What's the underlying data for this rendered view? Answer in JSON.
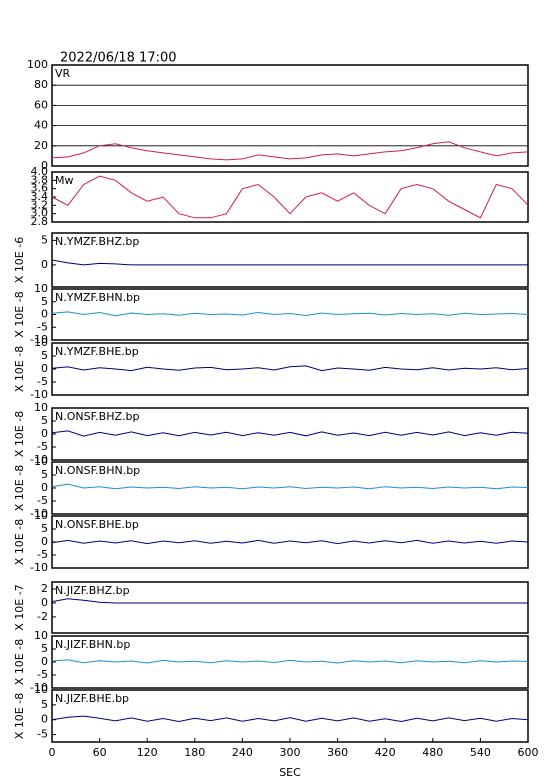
{
  "chart_data": [
    {
      "type": "line",
      "title": "2022/06/18 17:00",
      "label": "VR",
      "grid": true,
      "xlim": [
        0,
        600
      ],
      "ylim": [
        0,
        100
      ],
      "yticks": [
        0,
        20,
        40,
        60,
        80,
        100
      ],
      "x": [
        0,
        20,
        40,
        60,
        80,
        100,
        120,
        140,
        160,
        180,
        200,
        220,
        240,
        260,
        280,
        300,
        320,
        340,
        360,
        380,
        400,
        420,
        440,
        460,
        480,
        500,
        520,
        540,
        560,
        580,
        600
      ],
      "series": [
        {
          "color": "#d0204a",
          "values": [
            8,
            9,
            13,
            20,
            22,
            18,
            15,
            13,
            11,
            9,
            7,
            6,
            7,
            11,
            9,
            7,
            8,
            11,
            12,
            10,
            12,
            14,
            15,
            18,
            22,
            24,
            18,
            14,
            10,
            13,
            14
          ]
        }
      ]
    },
    {
      "type": "line",
      "label": "Mw",
      "xlim": [
        0,
        600
      ],
      "ylim": [
        2.8,
        4.0
      ],
      "yticks": [
        {
          "value": 2.8,
          "label": "2.8"
        },
        {
          "value": 3.0,
          "label": "3.0"
        },
        3.2,
        3.4,
        3.6,
        3.8,
        {
          "value": 4.0,
          "label": "4.0"
        }
      ],
      "x": [
        0,
        20,
        40,
        60,
        80,
        100,
        120,
        140,
        160,
        180,
        200,
        220,
        240,
        260,
        280,
        300,
        320,
        340,
        360,
        380,
        400,
        420,
        440,
        460,
        480,
        500,
        520,
        540,
        560,
        580,
        600
      ],
      "series": [
        {
          "color": "#d0204a",
          "values": [
            3.4,
            3.2,
            3.7,
            3.9,
            3.8,
            3.5,
            3.3,
            3.4,
            3.0,
            2.9,
            2.9,
            3.0,
            3.6,
            3.7,
            3.4,
            3.0,
            3.4,
            3.5,
            3.3,
            3.5,
            3.2,
            3.0,
            3.6,
            3.7,
            3.6,
            3.3,
            3.1,
            2.9,
            3.7,
            3.6,
            3.2
          ]
        }
      ]
    },
    {
      "type": "line",
      "label": "N.YMZF.BHZ.bp",
      "ylabel": "X 10E -6",
      "xlim": [
        0,
        600
      ],
      "ylim": [
        -4.5,
        6.5
      ],
      "yticks": [
        0,
        5
      ],
      "x": [
        0,
        20,
        40,
        60,
        80,
        100,
        120,
        140,
        160,
        180,
        200,
        220,
        240,
        260,
        280,
        300,
        320,
        340,
        360,
        380,
        400,
        420,
        440,
        460,
        480,
        500,
        520,
        540,
        560,
        580,
        600
      ],
      "series": [
        {
          "color": "#000080",
          "values": [
            1,
            0.4,
            0,
            0.3,
            0.2,
            0,
            0,
            0,
            0,
            0,
            0,
            0,
            0,
            0,
            0,
            0,
            0,
            0,
            0,
            0,
            0,
            0,
            0,
            0,
            0,
            0,
            0,
            0,
            0,
            0,
            0
          ]
        }
      ]
    },
    {
      "type": "line",
      "label": "N.YMZF.BHN.bp",
      "ylabel": "X 10E -8",
      "xlim": [
        0,
        600
      ],
      "ylim": [
        -10,
        10
      ],
      "yticks": [
        -10,
        -5,
        0,
        5,
        10
      ],
      "x": [
        0,
        20,
        40,
        60,
        80,
        100,
        120,
        140,
        160,
        180,
        200,
        220,
        240,
        260,
        280,
        300,
        320,
        340,
        360,
        380,
        400,
        420,
        440,
        460,
        480,
        500,
        520,
        540,
        560,
        580,
        600
      ],
      "series": [
        {
          "color": "#1e90d0",
          "values": [
            0.5,
            1,
            0,
            0.8,
            -0.5,
            0.6,
            0,
            0.3,
            -0.3,
            0.5,
            0,
            0.2,
            -0.2,
            0.8,
            0,
            0.4,
            -0.4,
            0.6,
            0,
            0.3,
            0.5,
            -0.2,
            0.4,
            0,
            0.3,
            -0.3,
            0.5,
            0,
            0.2,
            0.4,
            0
          ]
        }
      ]
    },
    {
      "type": "line",
      "label": "N.YMZF.BHE.bp",
      "ylabel": "X 10E -8",
      "xlim": [
        0,
        600
      ],
      "ylim": [
        -10,
        10
      ],
      "yticks": [
        -10,
        -5,
        0,
        5,
        10
      ],
      "x": [
        0,
        20,
        40,
        60,
        80,
        100,
        120,
        140,
        160,
        180,
        200,
        220,
        240,
        260,
        280,
        300,
        320,
        340,
        360,
        380,
        400,
        420,
        440,
        460,
        480,
        500,
        520,
        540,
        560,
        580,
        600
      ],
      "series": [
        {
          "color": "#000080",
          "values": [
            0.3,
            0.8,
            -0.4,
            0.5,
            0,
            -0.6,
            0.7,
            0,
            -0.5,
            0.4,
            0.6,
            -0.3,
            0,
            0.5,
            -0.4,
            0.9,
            1.2,
            -0.6,
            0.4,
            0,
            -0.5,
            0.6,
            0,
            -0.3,
            0.5,
            -0.4,
            0.3,
            0,
            0.5,
            -0.3,
            0.2
          ]
        }
      ]
    },
    {
      "type": "line",
      "label": "N.ONSF.BHZ.bp",
      "ylabel": "X 10E -8",
      "xlim": [
        0,
        600
      ],
      "ylim": [
        -10,
        10
      ],
      "yticks": [
        -10,
        -5,
        0,
        5,
        10
      ],
      "x": [
        0,
        20,
        40,
        60,
        80,
        100,
        120,
        140,
        160,
        180,
        200,
        220,
        240,
        260,
        280,
        300,
        320,
        340,
        360,
        380,
        400,
        420,
        440,
        460,
        480,
        500,
        520,
        540,
        560,
        580,
        600
      ],
      "series": [
        {
          "color": "#000080",
          "values": [
            0.5,
            1.2,
            -0.8,
            0.6,
            -0.5,
            0.8,
            -0.6,
            0.5,
            -0.7,
            0.6,
            -0.4,
            0.7,
            -0.6,
            0.5,
            -0.5,
            0.6,
            -0.7,
            0.8,
            -0.5,
            0.4,
            -0.6,
            0.7,
            -0.5,
            0.6,
            -0.4,
            0.8,
            -0.6,
            0.5,
            -0.5,
            0.7,
            0.3
          ]
        }
      ]
    },
    {
      "type": "line",
      "label": "N.ONSF.BHN.bp",
      "ylabel": "X 10E -8",
      "xlim": [
        0,
        600
      ],
      "ylim": [
        -10,
        10
      ],
      "yticks": [
        -10,
        -5,
        0,
        5,
        10
      ],
      "x": [
        0,
        20,
        40,
        60,
        80,
        100,
        120,
        140,
        160,
        180,
        200,
        220,
        240,
        260,
        280,
        300,
        320,
        340,
        360,
        380,
        400,
        420,
        440,
        460,
        480,
        500,
        520,
        540,
        560,
        580,
        600
      ],
      "series": [
        {
          "color": "#1e90d0",
          "values": [
            0.5,
            1.5,
            0,
            0.5,
            -0.3,
            0.4,
            0,
            0.3,
            -0.2,
            0.5,
            0,
            0.3,
            -0.3,
            0.4,
            0,
            0.5,
            -0.2,
            0.3,
            0,
            0.4,
            -0.3,
            0.5,
            0,
            0.3,
            -0.2,
            0.4,
            0,
            0.3,
            -0.3,
            0.4,
            0.2
          ]
        }
      ]
    },
    {
      "type": "line",
      "label": "N.ONSF.BHE.bp",
      "ylabel": "X 10E -8",
      "xlim": [
        0,
        600
      ],
      "ylim": [
        -10,
        10
      ],
      "yticks": [
        -10,
        -5,
        0,
        5,
        10
      ],
      "x": [
        0,
        20,
        40,
        60,
        80,
        100,
        120,
        140,
        160,
        180,
        200,
        220,
        240,
        260,
        280,
        300,
        320,
        340,
        360,
        380,
        400,
        420,
        440,
        460,
        480,
        500,
        520,
        540,
        560,
        580,
        600
      ],
      "series": [
        {
          "color": "#000080",
          "values": [
            -0.3,
            0.6,
            -0.5,
            0.4,
            -0.4,
            0.5,
            -0.6,
            0.4,
            -0.3,
            0.5,
            -0.5,
            0.3,
            -0.4,
            0.6,
            -0.5,
            0.4,
            -0.3,
            0.5,
            -0.6,
            0.4,
            -0.4,
            0.5,
            -0.3,
            0.6,
            -0.5,
            0.4,
            -0.4,
            0.3,
            -0.5,
            0.4,
            0
          ]
        }
      ]
    },
    {
      "type": "line",
      "label": "N.JIZF.BHZ.bp",
      "ylabel": "X 10E -7",
      "xlim": [
        0,
        600
      ],
      "ylim": [
        -4.3,
        3
      ],
      "yticks": [
        -2,
        0,
        2
      ],
      "x": [
        0,
        20,
        40,
        60,
        80,
        100,
        120,
        140,
        160,
        180,
        200,
        220,
        240,
        260,
        280,
        300,
        320,
        340,
        360,
        380,
        400,
        420,
        440,
        460,
        480,
        500,
        520,
        540,
        560,
        580,
        600
      ],
      "series": [
        {
          "color": "#000080",
          "values": [
            0.2,
            0.6,
            0.4,
            0.1,
            0,
            0,
            0,
            0,
            0,
            0,
            0,
            0,
            0,
            0,
            0,
            0,
            0,
            0,
            0,
            0,
            0,
            0,
            0,
            0,
            0,
            0,
            0,
            0,
            0,
            0,
            0
          ]
        }
      ]
    },
    {
      "type": "line",
      "label": "N.JIZF.BHN.bp",
      "ylabel": "X 10E -8",
      "xlim": [
        0,
        600
      ],
      "ylim": [
        -10,
        10
      ],
      "yticks": [
        -10,
        -5,
        0,
        5,
        10
      ],
      "x": [
        0,
        20,
        40,
        60,
        80,
        100,
        120,
        140,
        160,
        180,
        200,
        220,
        240,
        260,
        280,
        300,
        320,
        340,
        360,
        380,
        400,
        420,
        440,
        460,
        480,
        500,
        520,
        540,
        560,
        580,
        600
      ],
      "series": [
        {
          "color": "#1e90d0",
          "values": [
            0.4,
            0.8,
            -0.3,
            0.5,
            0,
            0.4,
            -0.4,
            0.6,
            0,
            0.3,
            -0.3,
            0.5,
            0,
            0.4,
            -0.2,
            0.6,
            0,
            0.3,
            -0.4,
            0.5,
            0,
            0.4,
            -0.3,
            0.5,
            0,
            0.3,
            -0.3,
            0.5,
            0,
            0.4,
            0.2
          ]
        }
      ]
    },
    {
      "type": "line",
      "label": "N.JIZF.BHE.bp",
      "ylabel": "X 10E -8",
      "xlabel": "SEC",
      "xlim": [
        0,
        600
      ],
      "ylim": [
        -7.5,
        10
      ],
      "yticks": [
        -5,
        0,
        5,
        10
      ],
      "xticks": [
        0,
        60,
        120,
        180,
        240,
        300,
        360,
        420,
        480,
        540,
        600
      ],
      "x": [
        0,
        20,
        40,
        60,
        80,
        100,
        120,
        140,
        160,
        180,
        200,
        220,
        240,
        260,
        280,
        300,
        320,
        340,
        360,
        380,
        400,
        420,
        440,
        460,
        480,
        500,
        520,
        540,
        560,
        580,
        600
      ],
      "series": [
        {
          "color": "#000080",
          "values": [
            0,
            0.8,
            1.2,
            0.5,
            -0.4,
            0.6,
            -0.5,
            0.4,
            -0.6,
            0.5,
            -0.3,
            0.6,
            -0.5,
            0.4,
            -0.4,
            0.7,
            -0.5,
            0.5,
            -0.4,
            0.6,
            -0.5,
            0.3,
            -0.6,
            0.5,
            -0.4,
            0.6,
            -0.3,
            0.5,
            -0.5,
            0.4,
            0
          ]
        }
      ]
    }
  ]
}
